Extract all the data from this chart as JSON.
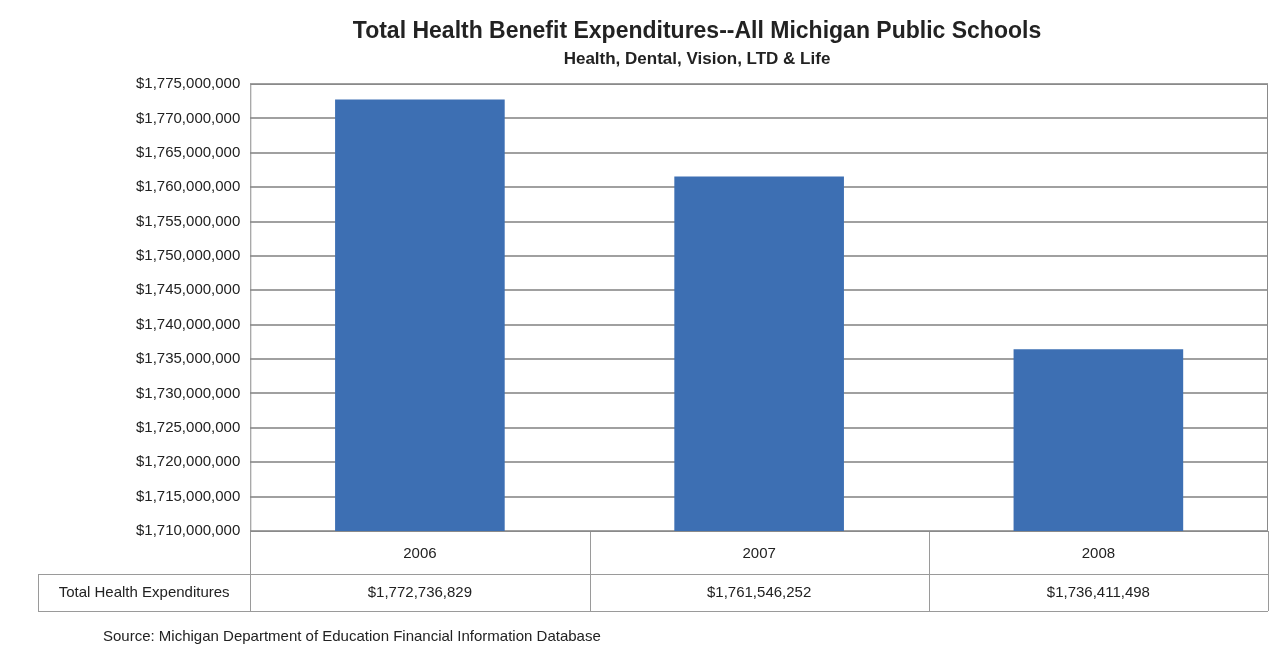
{
  "chart_data": {
    "type": "bar",
    "title": "Total Health Benefit Expenditures--All Michigan Public Schools",
    "subtitle": "Health, Dental, Vision, LTD & Life",
    "categories": [
      "2006",
      "2007",
      "2008"
    ],
    "series": [
      {
        "name": "Total Health Expenditures",
        "color": "#3d6fb3",
        "values": [
          1772736829,
          1761546252,
          1736411498
        ],
        "value_labels": [
          "$1,772,736,829",
          "$1,761,546,252",
          "$1,736,411,498"
        ]
      }
    ],
    "ylim": [
      1710000000,
      1775000000
    ],
    "yticks": [
      {
        "value": 1710000000,
        "label": "$1,710,000,000"
      },
      {
        "value": 1715000000,
        "label": "$1,715,000,000"
      },
      {
        "value": 1720000000,
        "label": "$1,720,000,000"
      },
      {
        "value": 1725000000,
        "label": "$1,725,000,000"
      },
      {
        "value": 1730000000,
        "label": "$1,730,000,000"
      },
      {
        "value": 1735000000,
        "label": "$1,735,000,000"
      },
      {
        "value": 1740000000,
        "label": "$1,740,000,000"
      },
      {
        "value": 1745000000,
        "label": "$1,745,000,000"
      },
      {
        "value": 1750000000,
        "label": "$1,750,000,000"
      },
      {
        "value": 1755000000,
        "label": "$1,755,000,000"
      },
      {
        "value": 1760000000,
        "label": "$1,760,000,000"
      },
      {
        "value": 1765000000,
        "label": "$1,765,000,000"
      },
      {
        "value": 1770000000,
        "label": "$1,770,000,000"
      },
      {
        "value": 1775000000,
        "label": "$1,775,000,000"
      }
    ],
    "grid": "y",
    "annotations": [
      "Source: Michigan Department of Education Financial Information Database"
    ]
  }
}
